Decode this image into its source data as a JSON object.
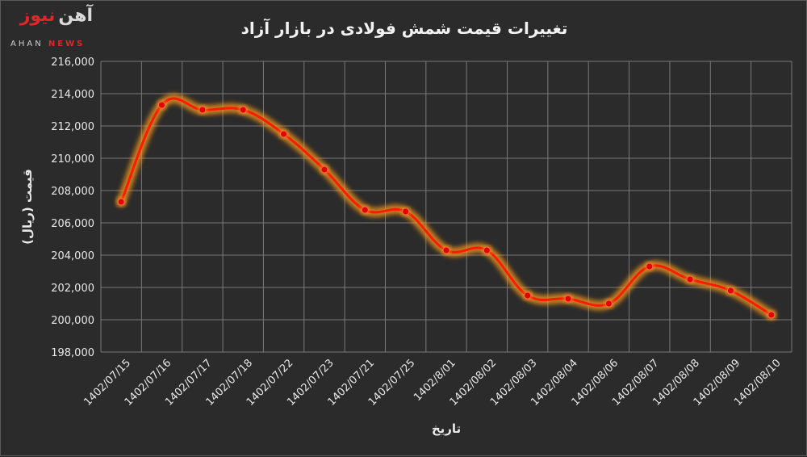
{
  "logo": {
    "persian_red": "نیوز",
    "persian_white": "آهن",
    "latin_main": "AHAN",
    "latin_news": "NEWS"
  },
  "chart_data": {
    "type": "line",
    "title": "تغییرات قیمت شمش فولادی در بازار آزاد",
    "xlabel": "تاریخ",
    "ylabel": "قیمت (ریال)",
    "categories": [
      "1402/07/15",
      "1402/07/16",
      "1402/07/17",
      "1402/07/18",
      "1402/07/22",
      "1402/07/23",
      "1402/07/21",
      "1402/07/25",
      "1402/8/01",
      "1402/08/02",
      "1402/08/03",
      "1402/08/04",
      "1402/08/06",
      "1402/08/07",
      "1402/08/08",
      "1402/08/09",
      "1402/08/10"
    ],
    "series": [
      {
        "values": [
          207300,
          213300,
          213000,
          213000,
          211500,
          209300,
          206800,
          206700,
          204300,
          204300,
          201500,
          201300,
          201000,
          203300,
          202500,
          201800,
          200300
        ]
      }
    ],
    "ylim": [
      198000,
      216000
    ],
    "ytick_step": 2000,
    "yticks": [
      "198,000",
      "200,000",
      "202,000",
      "204,000",
      "206,000",
      "208,000",
      "210,000",
      "212,000",
      "214,000",
      "216,000"
    ],
    "grid": true,
    "colors": {
      "line": "#ff1a00",
      "glow": "#ff9a1a",
      "marker": "#e00000",
      "grid": "#7a7a7a",
      "text": "#e8e8e8",
      "background": "#2b2b2b"
    }
  }
}
